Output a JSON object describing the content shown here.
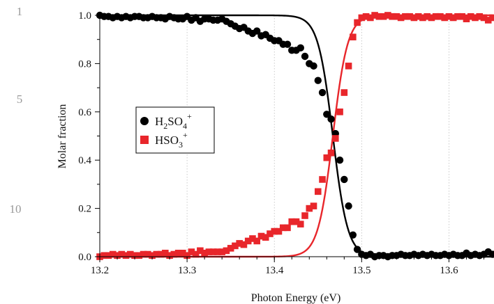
{
  "line_numbers": [
    "1",
    "5",
    "10"
  ],
  "chart_data": {
    "type": "scatter",
    "xlabel": "Photon Energy (eV)",
    "ylabel": "Molar fraction",
    "xlim": [
      13.2,
      13.65
    ],
    "ylim": [
      0.0,
      1.03
    ],
    "x_ticks": [
      "13.2",
      "13.3",
      "13.4",
      "13.5",
      "13.6"
    ],
    "y_ticks": [
      "0.0",
      "0.2",
      "0.4",
      "0.6",
      "0.8",
      "1.0"
    ],
    "grid": "vertical dotted",
    "legend_position": "center-left",
    "series": [
      {
        "name": "H2SO4+",
        "name_main": "H",
        "name_sub1": "2",
        "name_mid": "SO",
        "name_sub2": "4",
        "name_sup": "+",
        "color": "#000000",
        "marker": "circle",
        "x": [
          13.2,
          13.205,
          13.21,
          13.215,
          13.22,
          13.225,
          13.23,
          13.235,
          13.24,
          13.245,
          13.25,
          13.255,
          13.26,
          13.265,
          13.27,
          13.275,
          13.28,
          13.285,
          13.29,
          13.295,
          13.3,
          13.305,
          13.31,
          13.315,
          13.32,
          13.325,
          13.33,
          13.335,
          13.34,
          13.345,
          13.35,
          13.355,
          13.36,
          13.365,
          13.37,
          13.375,
          13.38,
          13.385,
          13.39,
          13.395,
          13.4,
          13.405,
          13.41,
          13.415,
          13.42,
          13.425,
          13.43,
          13.435,
          13.44,
          13.445,
          13.45,
          13.455,
          13.46,
          13.465,
          13.47,
          13.475,
          13.48,
          13.485,
          13.49,
          13.495,
          13.5,
          13.505,
          13.51,
          13.515,
          13.52,
          13.525,
          13.53,
          13.535,
          13.54,
          13.545,
          13.55,
          13.555,
          13.56,
          13.565,
          13.57,
          13.575,
          13.58,
          13.585,
          13.59,
          13.595,
          13.6,
          13.605,
          13.61,
          13.615,
          13.62,
          13.625,
          13.63,
          13.635,
          13.64,
          13.645,
          13.65
        ],
        "y": [
          1.0,
          0.995,
          0.995,
          0.99,
          0.995,
          0.99,
          0.995,
          0.99,
          0.995,
          0.995,
          0.99,
          0.99,
          0.995,
          0.99,
          0.99,
          0.985,
          0.995,
          0.99,
          0.985,
          0.985,
          0.995,
          0.98,
          0.99,
          0.975,
          0.985,
          0.985,
          0.98,
          0.98,
          0.985,
          0.975,
          0.965,
          0.955,
          0.945,
          0.95,
          0.935,
          0.925,
          0.935,
          0.915,
          0.92,
          0.905,
          0.895,
          0.895,
          0.88,
          0.88,
          0.855,
          0.855,
          0.865,
          0.83,
          0.8,
          0.79,
          0.73,
          0.68,
          0.59,
          0.57,
          0.51,
          0.4,
          0.32,
          0.21,
          0.09,
          0.03,
          0.01,
          0.005,
          0.01,
          0.0,
          0.005,
          0.005,
          0.0,
          0.005,
          0.005,
          0.01,
          0.005,
          0.005,
          0.01,
          0.005,
          0.01,
          0.005,
          0.01,
          0.005,
          0.005,
          0.01,
          0.005,
          0.01,
          0.005,
          0.005,
          0.015,
          0.005,
          0.01,
          0.005,
          0.01,
          0.02,
          0.01
        ]
      },
      {
        "name": "HSO3+",
        "name_main": "HSO",
        "name_sub1": "3",
        "name_sup": "+",
        "color": "#e8262b",
        "marker": "square",
        "x": [
          13.2,
          13.205,
          13.21,
          13.215,
          13.22,
          13.225,
          13.23,
          13.235,
          13.24,
          13.245,
          13.25,
          13.255,
          13.26,
          13.265,
          13.27,
          13.275,
          13.28,
          13.285,
          13.29,
          13.295,
          13.3,
          13.305,
          13.31,
          13.315,
          13.32,
          13.325,
          13.33,
          13.335,
          13.34,
          13.345,
          13.35,
          13.355,
          13.36,
          13.365,
          13.37,
          13.375,
          13.38,
          13.385,
          13.39,
          13.395,
          13.4,
          13.405,
          13.41,
          13.415,
          13.42,
          13.425,
          13.43,
          13.435,
          13.44,
          13.445,
          13.45,
          13.455,
          13.46,
          13.465,
          13.47,
          13.475,
          13.48,
          13.485,
          13.49,
          13.495,
          13.5,
          13.505,
          13.51,
          13.515,
          13.52,
          13.525,
          13.53,
          13.535,
          13.54,
          13.545,
          13.55,
          13.555,
          13.56,
          13.565,
          13.57,
          13.575,
          13.58,
          13.585,
          13.59,
          13.595,
          13.6,
          13.605,
          13.61,
          13.615,
          13.62,
          13.625,
          13.63,
          13.635,
          13.64,
          13.645,
          13.65
        ],
        "y": [
          0.0,
          0.005,
          0.005,
          0.01,
          0.005,
          0.01,
          0.005,
          0.01,
          0.005,
          0.005,
          0.01,
          0.01,
          0.005,
          0.01,
          0.01,
          0.015,
          0.005,
          0.01,
          0.015,
          0.015,
          0.005,
          0.02,
          0.01,
          0.025,
          0.015,
          0.02,
          0.02,
          0.02,
          0.02,
          0.025,
          0.035,
          0.045,
          0.055,
          0.05,
          0.065,
          0.075,
          0.065,
          0.085,
          0.08,
          0.095,
          0.105,
          0.105,
          0.12,
          0.12,
          0.145,
          0.145,
          0.135,
          0.17,
          0.2,
          0.21,
          0.27,
          0.32,
          0.41,
          0.43,
          0.49,
          0.6,
          0.68,
          0.79,
          0.91,
          0.97,
          0.99,
          0.995,
          0.99,
          1.0,
          0.995,
          0.995,
          1.0,
          0.995,
          0.995,
          0.99,
          0.995,
          0.995,
          0.99,
          0.995,
          0.99,
          0.995,
          0.99,
          0.995,
          0.995,
          0.99,
          0.995,
          0.99,
          0.995,
          0.995,
          0.985,
          0.995,
          0.99,
          0.995,
          0.99,
          0.98,
          0.99
        ]
      }
    ],
    "fit_curves": [
      {
        "series": "H2SO4+",
        "model": "1 - 1/(1+exp(-(x-x0)/w))",
        "x0": 13.467,
        "w": 0.0085,
        "color": "#000000"
      },
      {
        "series": "HSO3+",
        "model": "1/(1+exp(-(x-x0)/w))",
        "x0": 13.467,
        "w": 0.0085,
        "color": "#e8262b"
      }
    ]
  }
}
